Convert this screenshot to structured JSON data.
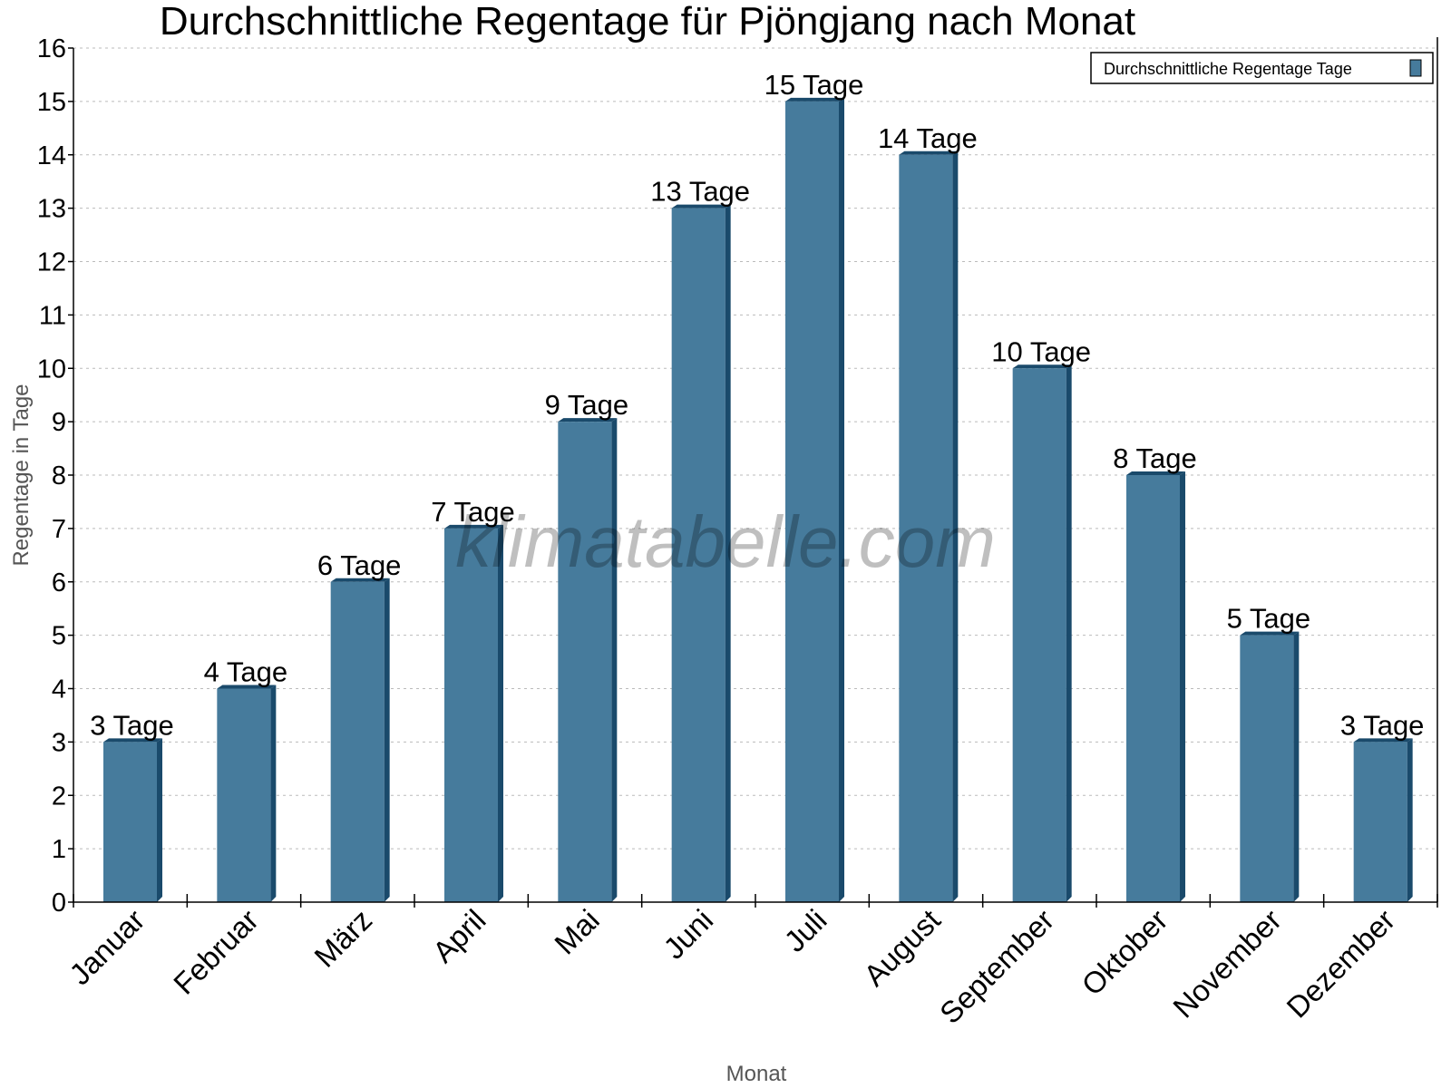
{
  "chart_data": {
    "type": "bar",
    "title": "Durchschnittliche Regentage für Pjöngjang nach Monat",
    "xlabel": "Monat",
    "ylabel": "Regentage in Tage",
    "ylim": [
      0,
      16
    ],
    "yticks": [
      "0",
      "1",
      "2",
      "3",
      "4",
      "5",
      "6",
      "7",
      "8",
      "9",
      "10",
      "11",
      "12",
      "13",
      "14",
      "15",
      "16"
    ],
    "grid": true,
    "legend_position": "top-right",
    "categories": [
      "Januar",
      "Februar",
      "März",
      "April",
      "Mai",
      "Juni",
      "Juli",
      "August",
      "September",
      "Oktober",
      "November",
      "Dezember"
    ],
    "series": [
      {
        "name": "Durchschnittliche Regentage Tage",
        "values": [
          3,
          4,
          6,
          7,
          9,
          13,
          15,
          14,
          10,
          8,
          5,
          3
        ],
        "labels": [
          "3 Tage",
          "4 Tage",
          "6 Tage",
          "7 Tage",
          "9 Tage",
          "13 Tage",
          "15 Tage",
          "14 Tage",
          "10 Tage",
          "8 Tage",
          "5 Tage",
          "3 Tage"
        ],
        "color": "#467b9c",
        "side_color": "#1a4a6b"
      }
    ],
    "watermark": "klimatabelle.com"
  }
}
